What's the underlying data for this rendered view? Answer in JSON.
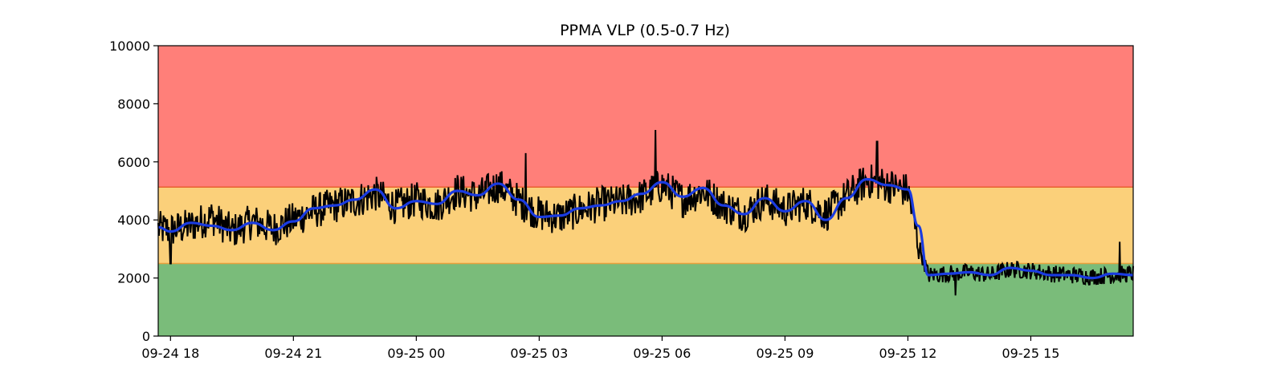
{
  "chart_data": {
    "type": "line",
    "title": "PPMA VLP (0.5-0.7 Hz)",
    "xlabel": "",
    "ylabel": "",
    "ylim": [
      0,
      10000
    ],
    "xlim": [
      "09-24 17:42",
      "09-25 17:30"
    ],
    "grid": false,
    "legend": "none",
    "y_ticks": [
      0,
      2000,
      4000,
      6000,
      8000,
      10000
    ],
    "x_ticks": [
      {
        "label": "09-24 18",
        "at": "09-24 18:00"
      },
      {
        "label": "09-24 21",
        "at": "09-24 21:00"
      },
      {
        "label": "09-25 00",
        "at": "09-25 00:00"
      },
      {
        "label": "09-25 03",
        "at": "09-25 03:00"
      },
      {
        "label": "09-25 06",
        "at": "09-25 06:00"
      },
      {
        "label": "09-25 09",
        "at": "09-25 09:00"
      },
      {
        "label": "09-25 12",
        "at": "09-25 12:00"
      },
      {
        "label": "09-25 15",
        "at": "09-25 15:00"
      }
    ],
    "bands": [
      {
        "from": 0,
        "to": 2500,
        "color": "#7abc7a"
      },
      {
        "from": 2500,
        "to": 5130,
        "color": "#fbd07a"
      },
      {
        "from": 5130,
        "to": 10000,
        "color": "#ff7f79"
      }
    ],
    "threshold_colors": [
      "#e8a03c",
      "#e8622f"
    ],
    "series": [
      {
        "style": "raw",
        "color": "#000000",
        "x": [
          "09-24 17:42",
          "09-24 18:00",
          "09-24 18:30",
          "09-24 19:00",
          "09-24 19:30",
          "09-24 20:00",
          "09-24 20:30",
          "09-24 21:00",
          "09-24 21:30",
          "09-24 22:00",
          "09-24 22:30",
          "09-24 23:00",
          "09-24 23:30",
          "09-25 00:00",
          "09-25 00:30",
          "09-25 01:00",
          "09-25 01:30",
          "09-25 02:00",
          "09-25 02:30",
          "09-25 03:00",
          "09-25 03:30",
          "09-25 04:00",
          "09-25 04:30",
          "09-25 05:00",
          "09-25 05:30",
          "09-25 06:00",
          "09-25 06:30",
          "09-25 07:00",
          "09-25 07:30",
          "09-25 08:00",
          "09-25 08:30",
          "09-25 09:00",
          "09-25 09:30",
          "09-25 10:00",
          "09-25 10:30",
          "09-25 11:00",
          "09-25 11:30",
          "09-25 12:00",
          "09-25 12:15",
          "09-25 12:30",
          "09-25 13:00",
          "09-25 13:30",
          "09-25 14:00",
          "09-25 14:30",
          "09-25 15:00",
          "09-25 15:30",
          "09-25 16:00",
          "09-25 16:30",
          "09-25 17:00",
          "09-25 17:30"
        ],
        "values": [
          3700,
          3650,
          3800,
          4100,
          3600,
          3950,
          3700,
          4000,
          4300,
          4500,
          4650,
          4900,
          4450,
          4700,
          4500,
          5000,
          4800,
          5200,
          4650,
          4200,
          4100,
          4350,
          4550,
          4600,
          4800,
          5200,
          4700,
          5000,
          4500,
          4200,
          4700,
          4350,
          4600,
          4200,
          4800,
          5350,
          5200,
          5000,
          3200,
          2100,
          2150,
          2200,
          2100,
          2300,
          2250,
          2150,
          2100,
          2050,
          2100,
          2150
        ],
        "peaks": [
          {
            "x": "09-25 05:50",
            "y": 7100
          },
          {
            "x": "09-25 11:15",
            "y": 6700
          },
          {
            "x": "09-25 02:40",
            "y": 6300
          },
          {
            "x": "09-24 18:00",
            "y": 2500
          },
          {
            "x": "09-25 13:10",
            "y": 1400
          },
          {
            "x": "09-25 17:10",
            "y": 3250
          }
        ]
      },
      {
        "style": "smoothed",
        "color": "#1a3be0",
        "x": [
          "09-24 17:42",
          "09-24 18:00",
          "09-24 18:30",
          "09-24 19:00",
          "09-24 19:30",
          "09-24 20:00",
          "09-24 20:30",
          "09-24 21:00",
          "09-24 21:30",
          "09-24 22:00",
          "09-24 22:30",
          "09-24 23:00",
          "09-24 23:30",
          "09-25 00:00",
          "09-25 00:30",
          "09-25 01:00",
          "09-25 01:30",
          "09-25 02:00",
          "09-25 02:30",
          "09-25 03:00",
          "09-25 03:30",
          "09-25 04:00",
          "09-25 04:30",
          "09-25 05:00",
          "09-25 05:30",
          "09-25 06:00",
          "09-25 06:30",
          "09-25 07:00",
          "09-25 07:30",
          "09-25 08:00",
          "09-25 08:30",
          "09-25 09:00",
          "09-25 09:30",
          "09-25 10:00",
          "09-25 10:30",
          "09-25 11:00",
          "09-25 11:30",
          "09-25 12:00",
          "09-25 12:15",
          "09-25 12:30",
          "09-25 13:00",
          "09-25 13:30",
          "09-25 14:00",
          "09-25 14:30",
          "09-25 15:00",
          "09-25 15:30",
          "09-25 16:00",
          "09-25 16:30",
          "09-25 17:00",
          "09-25 17:30"
        ],
        "values": [
          3750,
          3600,
          3900,
          3800,
          3650,
          3900,
          3650,
          3950,
          4400,
          4500,
          4700,
          5050,
          4400,
          4650,
          4550,
          5000,
          4850,
          5250,
          4700,
          4100,
          4150,
          4400,
          4500,
          4650,
          4900,
          5300,
          4800,
          5100,
          4500,
          4200,
          4750,
          4300,
          4650,
          4000,
          4750,
          5400,
          5200,
          5050,
          3800,
          2100,
          2150,
          2200,
          2100,
          2350,
          2250,
          2100,
          2100,
          2000,
          2150,
          2100
        ]
      }
    ]
  }
}
